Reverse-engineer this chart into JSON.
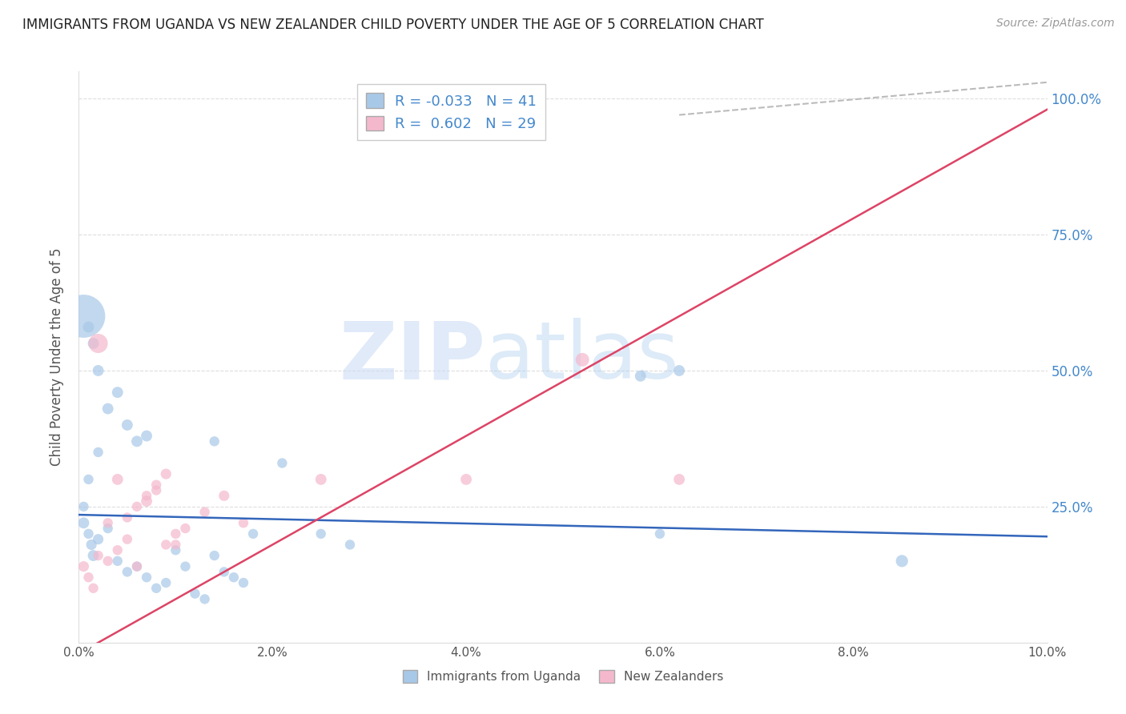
{
  "title": "IMMIGRANTS FROM UGANDA VS NEW ZEALANDER CHILD POVERTY UNDER THE AGE OF 5 CORRELATION CHART",
  "source": "Source: ZipAtlas.com",
  "ylabel": "Child Poverty Under the Age of 5",
  "xlim": [
    0.0,
    0.1
  ],
  "ylim": [
    0.0,
    1.05
  ],
  "xticks": [
    0.0,
    0.02,
    0.04,
    0.06,
    0.08,
    0.1
  ],
  "xticklabels": [
    "0.0%",
    "2.0%",
    "4.0%",
    "6.0%",
    "8.0%",
    "10.0%"
  ],
  "yticks": [
    0.0,
    0.25,
    0.5,
    0.75,
    1.0
  ],
  "right_yticklabels": [
    "",
    "25.0%",
    "50.0%",
    "75.0%",
    "100.0%"
  ],
  "blue_R": -0.033,
  "blue_N": 41,
  "pink_R": 0.602,
  "pink_N": 29,
  "blue_color": "#a8c8e8",
  "pink_color": "#f4b8cc",
  "blue_line_color": "#3366bb",
  "pink_line_color": "#dd4466",
  "right_tick_color": "#4488cc",
  "watermark_zip": "ZIP",
  "watermark_atlas": "atlas",
  "legend_label_blue": "Immigrants from Uganda",
  "legend_label_pink": "New Zealanders",
  "blue_x": [
    0.0005,
    0.001,
    0.0013,
    0.0015,
    0.002,
    0.003,
    0.004,
    0.005,
    0.006,
    0.007,
    0.008,
    0.009,
    0.01,
    0.011,
    0.012,
    0.013,
    0.014,
    0.015,
    0.016,
    0.017,
    0.0005,
    0.001,
    0.0015,
    0.002,
    0.003,
    0.004,
    0.005,
    0.006,
    0.007,
    0.0005,
    0.001,
    0.002,
    0.014,
    0.018,
    0.021,
    0.025,
    0.028,
    0.058,
    0.062,
    0.06,
    0.085
  ],
  "blue_y": [
    0.22,
    0.2,
    0.18,
    0.16,
    0.19,
    0.21,
    0.15,
    0.13,
    0.14,
    0.12,
    0.1,
    0.11,
    0.17,
    0.14,
    0.09,
    0.08,
    0.16,
    0.13,
    0.12,
    0.11,
    0.6,
    0.58,
    0.55,
    0.5,
    0.43,
    0.46,
    0.4,
    0.37,
    0.38,
    0.25,
    0.3,
    0.35,
    0.37,
    0.2,
    0.33,
    0.2,
    0.18,
    0.49,
    0.5,
    0.2,
    0.15
  ],
  "blue_sizes": [
    100,
    80,
    90,
    100,
    90,
    80,
    80,
    80,
    80,
    80,
    80,
    80,
    80,
    80,
    80,
    80,
    80,
    80,
    80,
    80,
    1500,
    100,
    100,
    100,
    100,
    100,
    100,
    100,
    100,
    80,
    80,
    80,
    80,
    80,
    80,
    80,
    80,
    100,
    100,
    80,
    120
  ],
  "pink_x": [
    0.0005,
    0.001,
    0.0015,
    0.002,
    0.003,
    0.004,
    0.005,
    0.006,
    0.007,
    0.008,
    0.009,
    0.01,
    0.011,
    0.013,
    0.015,
    0.017,
    0.002,
    0.003,
    0.004,
    0.005,
    0.006,
    0.007,
    0.008,
    0.009,
    0.01,
    0.025,
    0.04,
    0.052,
    0.062
  ],
  "pink_y": [
    0.14,
    0.12,
    0.1,
    0.55,
    0.22,
    0.3,
    0.23,
    0.25,
    0.26,
    0.28,
    0.18,
    0.2,
    0.21,
    0.24,
    0.27,
    0.22,
    0.16,
    0.15,
    0.17,
    0.19,
    0.14,
    0.27,
    0.29,
    0.31,
    0.18,
    0.3,
    0.3,
    0.52,
    0.3
  ],
  "pink_sizes": [
    90,
    80,
    80,
    300,
    80,
    100,
    80,
    80,
    100,
    80,
    80,
    80,
    80,
    80,
    90,
    80,
    80,
    80,
    80,
    80,
    80,
    80,
    80,
    90,
    80,
    100,
    100,
    150,
    100
  ],
  "grey_line_x": [
    0.062,
    0.1
  ],
  "grey_line_y": [
    0.97,
    1.03
  ]
}
